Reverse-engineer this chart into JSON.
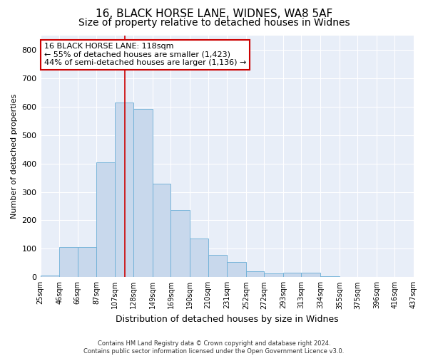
{
  "title1": "16, BLACK HORSE LANE, WIDNES, WA8 5AF",
  "title2": "Size of property relative to detached houses in Widnes",
  "xlabel": "Distribution of detached houses by size in Widnes",
  "ylabel": "Number of detached properties",
  "footnote": "Contains HM Land Registry data © Crown copyright and database right 2024.\nContains public sector information licensed under the Open Government Licence v3.0.",
  "annotation_line1": "16 BLACK HORSE LANE: 118sqm",
  "annotation_line2": "← 55% of detached houses are smaller (1,423)",
  "annotation_line3": "44% of semi-detached houses are larger (1,136) →",
  "bin_edges": [
    25,
    46,
    66,
    87,
    107,
    128,
    149,
    169,
    190,
    210,
    231,
    252,
    272,
    293,
    313,
    334,
    355,
    375,
    396,
    416,
    437
  ],
  "bar_heights": [
    5,
    107,
    107,
    403,
    614,
    591,
    330,
    236,
    135,
    78,
    54,
    22,
    14,
    15,
    15,
    3,
    0,
    0,
    0,
    0,
    5
  ],
  "bar_color": "#c8d8ec",
  "bar_edge_color": "#6aaed6",
  "vline_x": 118,
  "ylim": [
    0,
    850
  ],
  "yticks": [
    0,
    100,
    200,
    300,
    400,
    500,
    600,
    700,
    800
  ],
  "annotation_box_facecolor": "#ffffff",
  "annotation_box_edgecolor": "#cc0000",
  "vline_color": "#cc0000",
  "plot_bg_color": "#e8eef8",
  "grid_color": "#ffffff",
  "title1_fontsize": 11,
  "title2_fontsize": 10,
  "xlabel_fontsize": 9,
  "ylabel_fontsize": 8,
  "xtick_fontsize": 7,
  "ytick_fontsize": 8,
  "footnote_fontsize": 6,
  "annotation_fontsize": 8
}
